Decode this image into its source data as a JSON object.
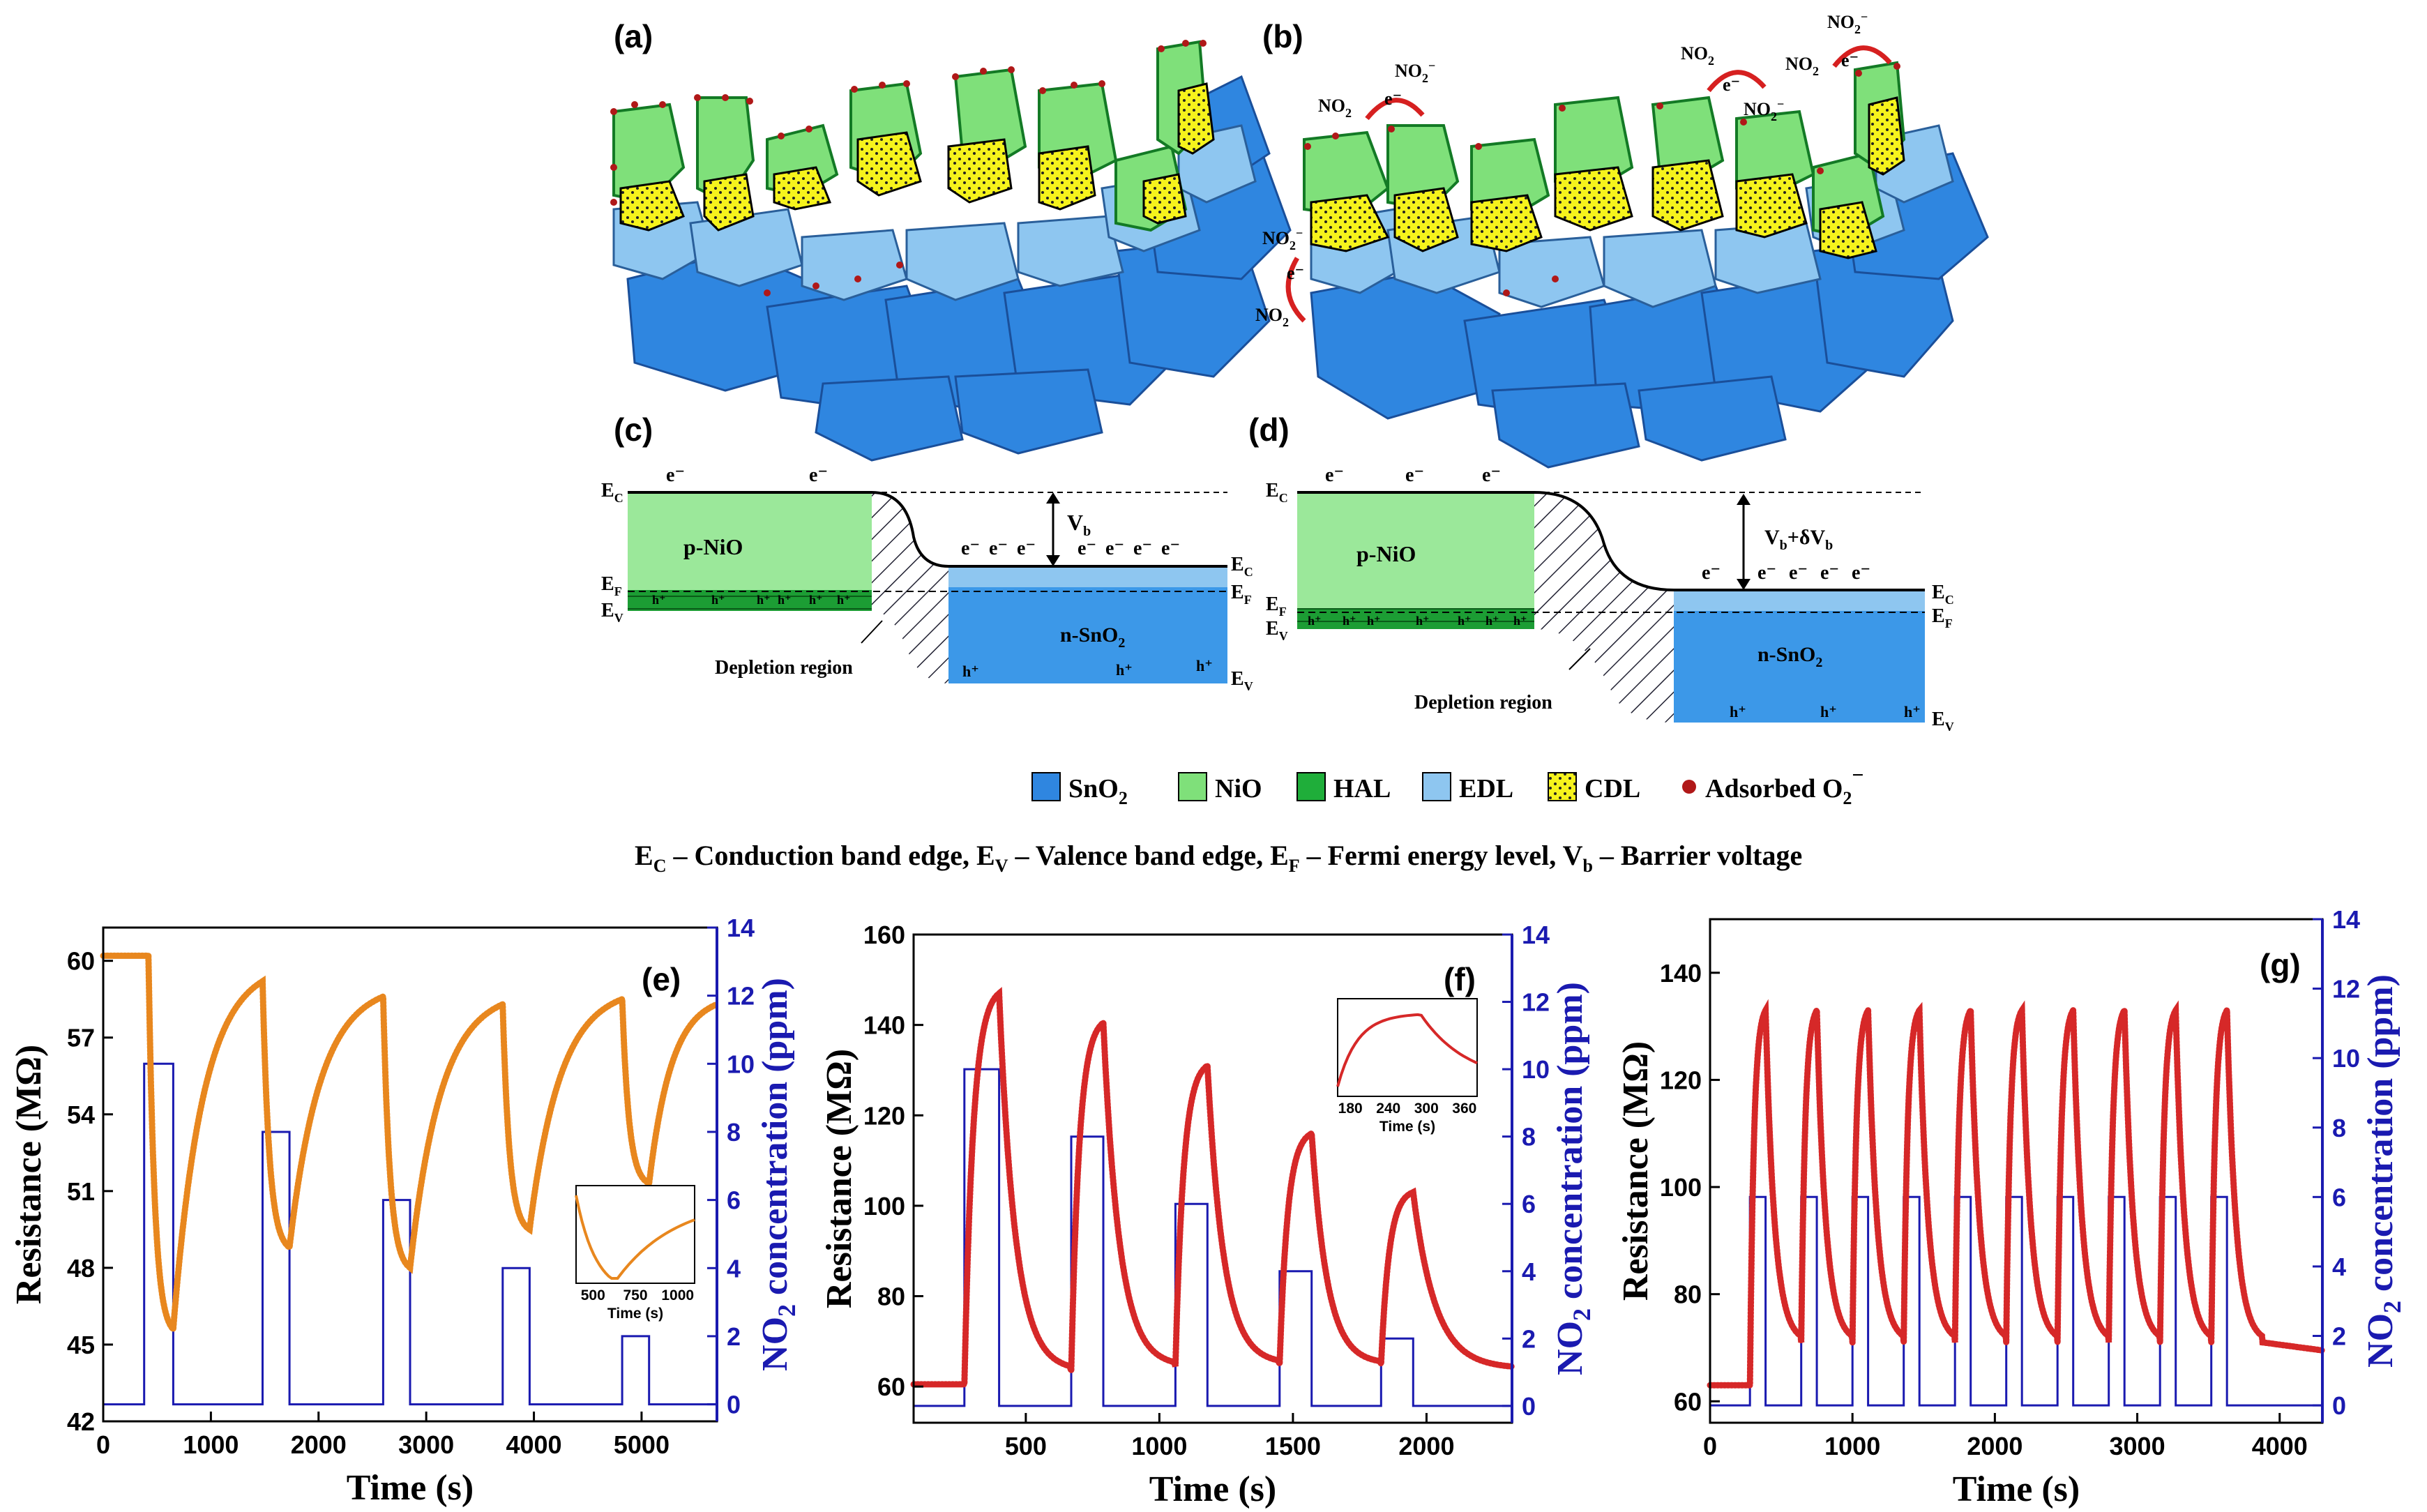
{
  "panels": {
    "a": "(a)",
    "b": "(b)",
    "c": "(c)",
    "d": "(d)",
    "e": "(e)",
    "f": "(f)",
    "g": "(g)"
  },
  "colors": {
    "sno2": "#2f86e0",
    "edl": "#8ec6f0",
    "nio": "#7fe07a",
    "hal": "#1fae3a",
    "cdl": "#f6f31c",
    "o2": "#b01818",
    "band_left": "#9be89a",
    "band_right": "#3c98e8",
    "orange": "#e8871e",
    "red": "#d62828",
    "blue": "#1a1ab0"
  },
  "particles": {
    "b_labels": [
      {
        "species": "NO",
        "sub": "2",
        "e": "e⁻",
        "ion": "NO",
        "ion_sub": "2",
        "ion_sup": "−"
      },
      {
        "species": "NO",
        "sub": "2",
        "e": "e⁻",
        "ion": "NO",
        "ion_sub": "2",
        "ion_sup": "−"
      },
      {
        "species": "NO",
        "sub": "2",
        "e": "e⁻",
        "ion": "NO",
        "ion_sub": "2",
        "ion_sup": "−"
      },
      {
        "species": "NO",
        "sub": "2",
        "e": "e⁻",
        "ion": "NO",
        "ion_sub": "2",
        "ion_sup": "−"
      }
    ]
  },
  "band_c": {
    "ec_left": "E",
    "ec_left_sub": "C",
    "ef_left": "E",
    "ef_left_sub": "F",
    "ev_left": "E",
    "ev_left_sub": "V",
    "electron": "e⁻",
    "hole": "h⁺",
    "p_label": "p-NiO",
    "n_label": "n-SnO",
    "n_label_sub": "2",
    "vb": "V",
    "vb_sub": "b",
    "depletion": "Depletion region",
    "ec_right": "E",
    "ec_right_sub": "C",
    "ef_right": "E",
    "ef_right_sub": "F",
    "ev_right": "E",
    "ev_right_sub": "V"
  },
  "band_d": {
    "vb_label": "V",
    "vb_sub": "b",
    "vb_plus": "+δV",
    "vb_sub2": "b"
  },
  "legend": [
    {
      "key": "sno2",
      "label": "SnO",
      "sub": "2"
    },
    {
      "key": "nio",
      "label": "NiO",
      "sub": ""
    },
    {
      "key": "hal",
      "label": "HAL",
      "sub": ""
    },
    {
      "key": "edl",
      "label": "EDL",
      "sub": ""
    },
    {
      "key": "cdl",
      "label": "CDL",
      "sub": ""
    },
    {
      "key": "o2",
      "label": "Adsorbed O",
      "sub": "2",
      "sup": "−"
    }
  ],
  "caption": {
    "parts": [
      {
        "t": "E"
      },
      {
        "s": "C"
      },
      {
        "t": " – Conduction band edge, E"
      },
      {
        "s": "V"
      },
      {
        "t": " – Valence band edge,  E"
      },
      {
        "s": "F"
      },
      {
        "t": " – Fermi energy level, V"
      },
      {
        "s": "b"
      },
      {
        "t": " – Barrier voltage"
      }
    ]
  },
  "chart_data": [
    {
      "id": "e",
      "type": "line",
      "xlabel": "Time (s)",
      "ylabel": "Resistance (MΩ)",
      "y2label_prefix": "NO",
      "y2label_sub": "2",
      "y2label_suffix": " concentration (ppm)",
      "xlim": [
        0,
        5700
      ],
      "ylim": [
        42,
        61.3
      ],
      "y2lim": [
        -0.5,
        14
      ],
      "xticks": [
        0,
        1000,
        2000,
        3000,
        4000,
        5000
      ],
      "yticks": [
        42,
        45,
        48,
        51,
        54,
        57,
        60
      ],
      "y2ticks": [
        0,
        2,
        4,
        6,
        8,
        10,
        12,
        14
      ],
      "resistance_series": {
        "name": "Resistance",
        "color": "#e8871e",
        "pulses": [
          {
            "on": 420,
            "off": 650,
            "start": 60.2,
            "min": 45.6,
            "recover_to": 59.2,
            "recover_end": 1480
          },
          {
            "on": 1480,
            "off": 1730,
            "start": 59.2,
            "min": 48.8,
            "recover_to": 58.6,
            "recover_end": 2600
          },
          {
            "on": 2600,
            "off": 2850,
            "start": 58.6,
            "min": 48.0,
            "recover_to": 58.3,
            "recover_end": 3710
          },
          {
            "on": 3710,
            "off": 3960,
            "start": 58.3,
            "min": 49.5,
            "recover_to": 58.5,
            "recover_end": 4820
          },
          {
            "on": 4820,
            "off": 5070,
            "start": 58.5,
            "min": 51.3,
            "recover_to": 58.3,
            "recover_end": 5700
          }
        ],
        "baseline_start": 60.2
      },
      "concentration_series": {
        "name": "NO2 concentration",
        "color": "#1a1ab0",
        "pulses": [
          {
            "on": 380,
            "off": 650,
            "ppm": 10
          },
          {
            "on": 1480,
            "off": 1730,
            "ppm": 8
          },
          {
            "on": 2600,
            "off": 2850,
            "ppm": 6
          },
          {
            "on": 3710,
            "off": 3960,
            "ppm": 4
          },
          {
            "on": 4820,
            "off": 5070,
            "ppm": 2
          }
        ]
      },
      "inset": {
        "xlabel": "Time (s)",
        "xticks": [
          500,
          750,
          1000
        ],
        "xlim": [
          400,
          1100
        ]
      }
    },
    {
      "id": "f",
      "type": "line",
      "xlabel": "Time (s)",
      "ylabel": "Resistance (MΩ)",
      "y2label_prefix": "NO",
      "y2label_sub": "2",
      "y2label_suffix": " concentration (ppm)",
      "xlim": [
        80,
        2320
      ],
      "ylim": [
        52,
        160
      ],
      "y2lim": [
        -0.5,
        14
      ],
      "xticks": [
        500,
        1000,
        1500,
        2000
      ],
      "yticks": [
        60,
        80,
        100,
        120,
        140,
        160
      ],
      "y2ticks": [
        0,
        2,
        4,
        6,
        8,
        10,
        12,
        14
      ],
      "resistance_series": {
        "name": "Resistance",
        "color": "#d62828",
        "pulses": [
          {
            "on": 270,
            "off": 400,
            "start": 60.5,
            "peak": 147,
            "recover_to": 63.5,
            "recover_end": 670
          },
          {
            "on": 670,
            "off": 790,
            "start": 63.5,
            "peak": 140.5,
            "recover_to": 64.5,
            "recover_end": 1060
          },
          {
            "on": 1060,
            "off": 1180,
            "start": 64.5,
            "peak": 131,
            "recover_to": 65,
            "recover_end": 1450
          },
          {
            "on": 1450,
            "off": 1570,
            "start": 65,
            "peak": 116,
            "recover_to": 65,
            "recover_end": 1830
          },
          {
            "on": 1830,
            "off": 1950,
            "start": 65,
            "peak": 103,
            "recover_to": 64,
            "recover_end": 2320
          }
        ],
        "baseline_start": 60.5
      },
      "concentration_series": {
        "name": "NO2 concentration",
        "color": "#1a1ab0",
        "pulses": [
          {
            "on": 270,
            "off": 400,
            "ppm": 10
          },
          {
            "on": 670,
            "off": 790,
            "ppm": 8
          },
          {
            "on": 1060,
            "off": 1180,
            "ppm": 6
          },
          {
            "on": 1450,
            "off": 1570,
            "ppm": 4
          },
          {
            "on": 1830,
            "off": 1950,
            "ppm": 2
          }
        ]
      },
      "inset": {
        "xlabel": "Time (s)",
        "xticks": [
          180,
          240,
          300,
          360
        ],
        "xlim": [
          160,
          380
        ]
      }
    },
    {
      "id": "g",
      "type": "line",
      "xlabel": "Time (s)",
      "ylabel": "Resistance (MΩ)",
      "y2label_prefix": "NO",
      "y2label_sub": "2",
      "y2label_suffix": " concentration (ppm)",
      "xlim": [
        0,
        4300
      ],
      "ylim": [
        56,
        150
      ],
      "y2lim": [
        -0.5,
        14
      ],
      "xticks": [
        0,
        1000,
        2000,
        3000,
        4000
      ],
      "yticks": [
        60,
        80,
        100,
        120,
        140
      ],
      "y2ticks": [
        0,
        2,
        4,
        6,
        8,
        10,
        12,
        14
      ],
      "resistance_series": {
        "name": "Resistance",
        "color": "#d62828",
        "cycles": 10,
        "first_on": 280,
        "period": 360,
        "on_dur": 110,
        "peak": 133,
        "trough": 71,
        "baseline_start": 63
      },
      "concentration_series": {
        "name": "NO2 concentration",
        "color": "#1a1ab0",
        "cycles": 10,
        "first_on": 280,
        "period": 360,
        "on_dur": 110,
        "ppm": 6
      }
    }
  ]
}
